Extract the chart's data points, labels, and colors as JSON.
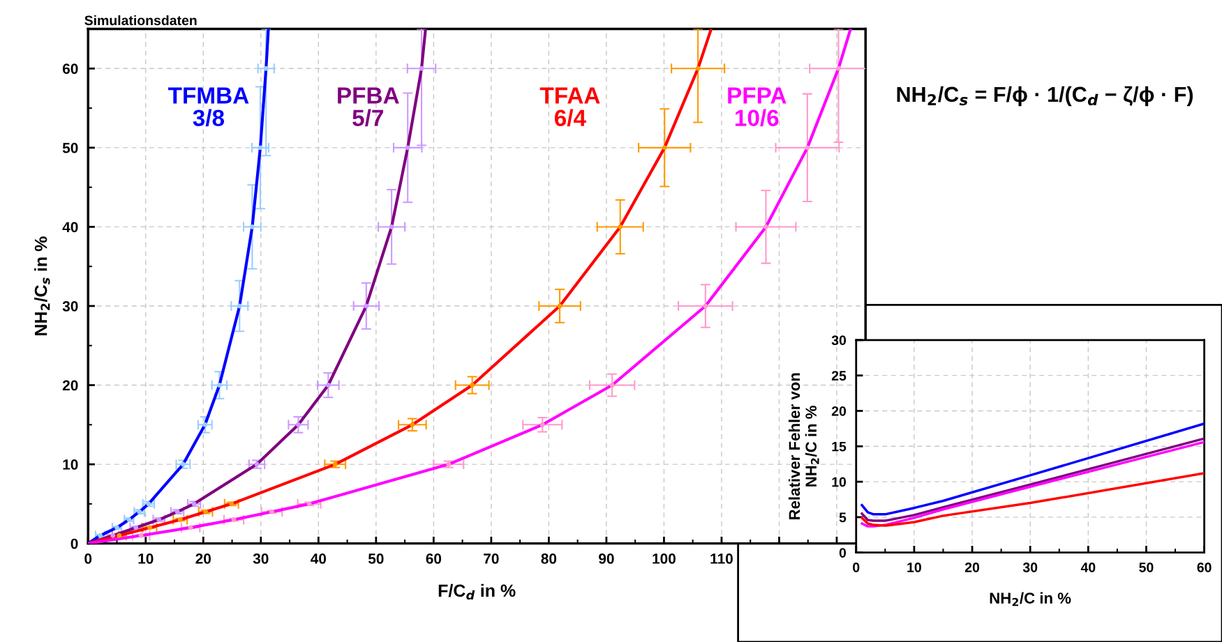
{
  "chart_data": [
    {
      "type": "line",
      "title": "Simulationsdaten",
      "xlabel": "F/C$_{d}$ in %",
      "ylabel": "NH$_{2}$/C$_{s}$ in %",
      "xlim": [
        0,
        135
      ],
      "ylim": [
        0,
        65
      ],
      "xticks": [
        0,
        10,
        20,
        30,
        40,
        50,
        60,
        70,
        80,
        90,
        100,
        110,
        {
          "value": 120,
          "label": null
        },
        {
          "value": 130,
          "label": null
        }
      ],
      "yticks": [
        0,
        10,
        20,
        30,
        40,
        50,
        60
      ],
      "grid": true,
      "marker": "none",
      "annotations": [
        "NH$_{2}$/C$_{s}$ = F/ϕ · 1/(C$_{d}$ − ζ/ϕ · F)"
      ],
      "series": [
        {
          "type": "line",
          "name": "TFMBA\n3/8",
          "color": "#0000ff",
          "x": [
            0,
            2.1,
            5.0,
            7.1,
            8.9,
            10.5,
            16.5,
            20.3,
            22.8,
            26.3,
            28.5,
            29.9,
            30.9,
            31.3
          ],
          "values": [
            0,
            1,
            2,
            3,
            4,
            5,
            10,
            15,
            20,
            30,
            40,
            50,
            60,
            65
          ]
        },
        {
          "type": "scatter",
          "marker": "circle",
          "color": "#99ccff",
          "x": [
            2.1,
            5.0,
            7.1,
            8.9,
            10.5,
            16.5,
            20.3,
            22.8,
            26.3,
            28.5,
            29.9,
            30.9
          ],
          "values": [
            1,
            2,
            3,
            4,
            5,
            10,
            15,
            20,
            30,
            40,
            50,
            60
          ],
          "xerrors": [
            0.8,
            0.8,
            0.8,
            0.9,
            1.0,
            1.2,
            1.2,
            1.3,
            1.45,
            1.5,
            1.45,
            1.4
          ],
          "errors": [
            0.1,
            0.15,
            0.2,
            0.25,
            0.3,
            0.5,
            1.0,
            1.7,
            3.2,
            5.3,
            7.7,
            [
              49,
              65
            ]
          ]
        },
        {
          "type": "line",
          "name": "PFBA\n5/7",
          "color": "#800080",
          "x": [
            0,
            4.3,
            8.3,
            12.3,
            15.5,
            18.4,
            29.3,
            36.5,
            41.7,
            48.3,
            52.7,
            55.5,
            57.9,
            58.6
          ],
          "values": [
            0,
            1,
            2,
            3,
            4,
            5,
            10,
            15,
            20,
            30,
            40,
            50,
            60,
            65
          ]
        },
        {
          "type": "scatter",
          "marker": "circle",
          "color": "#cc99ff",
          "x": [
            4.3,
            8.3,
            12.3,
            15.5,
            18.4,
            29.3,
            36.5,
            41.7,
            48.3,
            52.7,
            55.5,
            57.9
          ],
          "values": [
            1,
            2,
            3,
            4,
            5,
            10,
            15,
            20,
            30,
            40,
            50,
            60
          ],
          "xerrors": [
            1.0,
            1.0,
            1.0,
            1.1,
            1.1,
            1.35,
            1.7,
            1.85,
            2.2,
            2.3,
            2.45,
            2.45
          ],
          "errors": [
            0.1,
            0.15,
            0.2,
            0.25,
            0.3,
            0.5,
            1.0,
            1.55,
            2.9,
            4.7,
            6.9,
            [
              50.3,
              65
            ]
          ]
        },
        {
          "type": "line",
          "name": "TFAA\n6/4",
          "color": "#ff0000",
          "x": [
            0,
            5.4,
            10.7,
            16.0,
            20.4,
            24.9,
            42.9,
            56.3,
            66.7,
            81.9,
            92.4,
            100.1,
            105.9,
            108.2
          ],
          "values": [
            0,
            1,
            2,
            3,
            4,
            5,
            10,
            15,
            20,
            30,
            40,
            50,
            60,
            65
          ]
        },
        {
          "type": "scatter",
          "marker": "circle",
          "color": "#ff9900",
          "x": [
            5.4,
            10.7,
            16.0,
            20.4,
            24.9,
            42.9,
            56.3,
            66.7,
            81.9,
            92.4,
            100.1,
            105.9
          ],
          "values": [
            1,
            2,
            3,
            4,
            5,
            10,
            15,
            20,
            30,
            40,
            50,
            60
          ],
          "xerrors": [
            1.2,
            1.2,
            1.2,
            1.2,
            1.2,
            1.8,
            2.4,
            2.9,
            3.6,
            4.0,
            4.5,
            4.6
          ],
          "errors": [
            0.1,
            0.1,
            0.15,
            0.2,
            0.2,
            0.4,
            0.77,
            1.07,
            2.1,
            3.4,
            4.9,
            [
              53.2,
              65
            ]
          ]
        },
        {
          "type": "line",
          "name": "PFPA\n10/6",
          "color": "#ff00ff",
          "x": [
            0,
            9.2,
            17.8,
            25.3,
            31.9,
            38.4,
            62.6,
            78.9,
            91.0,
            107.2,
            117.7,
            124.9,
            130.3,
            132.4
          ],
          "values": [
            0,
            1,
            2,
            3,
            4,
            5,
            10,
            15,
            20,
            30,
            40,
            50,
            60,
            65
          ]
        },
        {
          "type": "scatter",
          "marker": "circle",
          "color": "#ff99cc",
          "x": [
            9.2,
            17.8,
            25.3,
            31.9,
            38.4,
            62.6,
            78.9,
            91.0,
            107.2,
            117.7,
            124.9,
            130.3
          ],
          "values": [
            1,
            2,
            3,
            4,
            5,
            10,
            15,
            20,
            30,
            40,
            50,
            60
          ],
          "xerrors": [
            1.5,
            1.6,
            1.7,
            1.8,
            2.0,
            2.6,
            3.4,
            3.9,
            4.7,
            5.2,
            5.5,
            5.0
          ],
          "errors": [
            0.1,
            0.1,
            0.15,
            0.15,
            0.2,
            0.4,
            0.9,
            1.4,
            2.7,
            4.6,
            6.8,
            [
              50.7,
              65
            ]
          ]
        }
      ]
    },
    {
      "type": "line",
      "xlabel": "NH$_{2}$/C in %",
      "ylabel": "Relativer Fehler von\nNH$_{2}$/C in %",
      "xlim": [
        0,
        60
      ],
      "ylim": [
        0,
        30
      ],
      "xticks": [
        0,
        10,
        20,
        30,
        40,
        50,
        60
      ],
      "yticks": [
        0,
        5,
        10,
        15,
        20,
        25,
        30
      ],
      "grid": true,
      "marker": "none",
      "series": [
        {
          "color": "#0000ff",
          "x": [
            1,
            2,
            3,
            5,
            10,
            15,
            30,
            60
          ],
          "values": [
            6.7,
            5.7,
            5.4,
            5.4,
            6.3,
            7.3,
            10.9,
            18.2
          ]
        },
        {
          "color": "#800080",
          "x": [
            1,
            2,
            3,
            5,
            10,
            15,
            30,
            60
          ],
          "values": [
            5.5,
            4.6,
            4.5,
            4.5,
            5.3,
            6.4,
            9.6,
            16.1
          ]
        },
        {
          "color": "#ff00ff",
          "x": [
            1,
            2,
            3,
            5,
            10,
            15,
            30,
            60
          ],
          "values": [
            4.1,
            3.7,
            3.7,
            3.9,
            4.9,
            6.1,
            9.3,
            15.6
          ]
        },
        {
          "color": "#ff0000",
          "x": [
            1,
            2,
            3,
            5,
            10,
            15,
            30,
            60
          ],
          "values": [
            4.9,
            4.1,
            3.9,
            3.8,
            4.3,
            5.2,
            7.0,
            11.2
          ]
        }
      ]
    }
  ]
}
